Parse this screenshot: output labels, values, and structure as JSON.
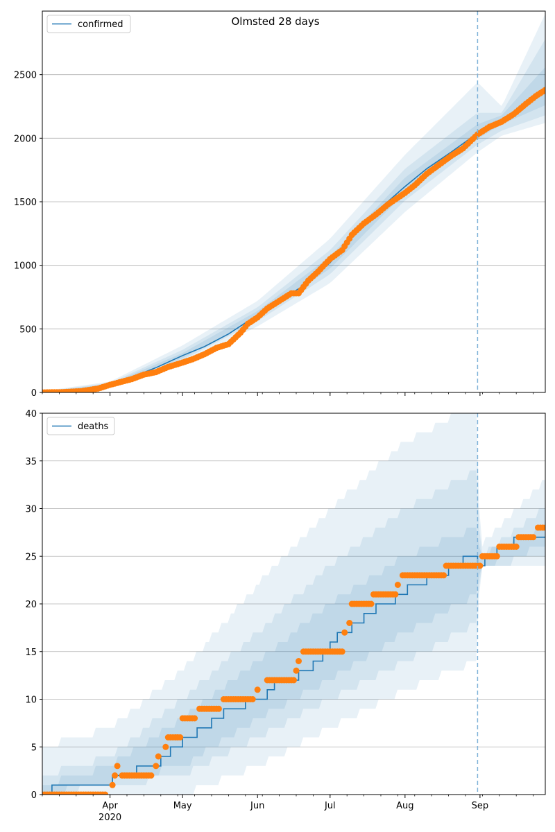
{
  "figure": {
    "title": "Olmsted 28 days"
  },
  "chart_data": [
    {
      "type": "line",
      "legend": {
        "label": "confirmed",
        "position": "top-left"
      },
      "grid": {
        "y": true,
        "x": false
      },
      "x_range": [
        "2020-03-04",
        "2020-09-28"
      ],
      "ylim": [
        0,
        3000
      ],
      "y_ticks": [
        0,
        500,
        1000,
        1500,
        2000,
        2500
      ],
      "x_ticks": [
        {
          "date": "2020-04-01",
          "label": "Apr",
          "sublabel": "2020"
        },
        {
          "date": "2020-05-01",
          "label": "May"
        },
        {
          "date": "2020-06-01",
          "label": "Jun"
        },
        {
          "date": "2020-07-01",
          "label": "Jul"
        },
        {
          "date": "2020-08-01",
          "label": "Aug"
        },
        {
          "date": "2020-09-01",
          "label": "Sep"
        }
      ],
      "forecast_start": "2020-08-31",
      "model_curve": [
        [
          "2020-03-04",
          0
        ],
        [
          "2020-03-15",
          5
        ],
        [
          "2020-03-25",
          25
        ],
        [
          "2020-04-01",
          60
        ],
        [
          "2020-04-10",
          120
        ],
        [
          "2020-04-20",
          195
        ],
        [
          "2020-05-01",
          290
        ],
        [
          "2020-05-10",
          360
        ],
        [
          "2020-05-20",
          460
        ],
        [
          "2020-06-01",
          610
        ],
        [
          "2020-06-10",
          720
        ],
        [
          "2020-06-20",
          840
        ],
        [
          "2020-07-01",
          1020
        ],
        [
          "2020-07-10",
          1230
        ],
        [
          "2020-07-20",
          1420
        ],
        [
          "2020-08-01",
          1620
        ],
        [
          "2020-08-10",
          1760
        ],
        [
          "2020-08-20",
          1890
        ],
        [
          "2020-08-31",
          2040
        ],
        [
          "2020-09-10",
          2150
        ],
        [
          "2020-09-20",
          2270
        ],
        [
          "2020-09-28",
          2390
        ]
      ],
      "bands": [
        {
          "lower": [
            [
              "2020-03-04",
              0
            ],
            [
              "2020-04-01",
              40
            ],
            [
              "2020-05-01",
              230
            ],
            [
              "2020-06-01",
              520
            ],
            [
              "2020-07-01",
              860
            ],
            [
              "2020-08-01",
              1420
            ],
            [
              "2020-08-31",
              1890
            ],
            [
              "2020-09-10",
              2020
            ],
            [
              "2020-09-28",
              2120
            ]
          ],
          "upper": [
            [
              "2020-03-04",
              10
            ],
            [
              "2020-04-01",
              85
            ],
            [
              "2020-05-01",
              370
            ],
            [
              "2020-06-01",
              720
            ],
            [
              "2020-07-01",
              1210
            ],
            [
              "2020-08-01",
              1870
            ],
            [
              "2020-08-31",
              2440
            ],
            [
              "2020-09-10",
              2250
            ],
            [
              "2020-09-28",
              2980
            ]
          ]
        },
        {
          "lower": [
            [
              "2020-03-04",
              0
            ],
            [
              "2020-04-01",
              48
            ],
            [
              "2020-05-01",
              255
            ],
            [
              "2020-06-01",
              560
            ],
            [
              "2020-07-01",
              930
            ],
            [
              "2020-08-01",
              1510
            ],
            [
              "2020-08-31",
              1950
            ],
            [
              "2020-09-10",
              2060
            ],
            [
              "2020-09-28",
              2180
            ]
          ],
          "upper": [
            [
              "2020-03-04",
              6
            ],
            [
              "2020-04-01",
              75
            ],
            [
              "2020-05-01",
              335
            ],
            [
              "2020-06-01",
              670
            ],
            [
              "2020-07-01",
              1120
            ],
            [
              "2020-08-01",
              1760
            ],
            [
              "2020-08-31",
              2200
            ],
            [
              "2020-09-10",
              2200
            ],
            [
              "2020-09-28",
              2780
            ]
          ]
        },
        {
          "lower": [
            [
              "2020-03-04",
              0
            ],
            [
              "2020-04-01",
              53
            ],
            [
              "2020-05-01",
              270
            ],
            [
              "2020-06-01",
              585
            ],
            [
              "2020-07-01",
              975
            ],
            [
              "2020-08-01",
              1570
            ],
            [
              "2020-08-31",
              1995
            ],
            [
              "2020-09-10",
              2110
            ],
            [
              "2020-09-28",
              2260
            ]
          ],
          "upper": [
            [
              "2020-03-04",
              4
            ],
            [
              "2020-04-01",
              68
            ],
            [
              "2020-05-01",
              310
            ],
            [
              "2020-06-01",
              640
            ],
            [
              "2020-07-01",
              1070
            ],
            [
              "2020-08-01",
              1690
            ],
            [
              "2020-08-31",
              2110
            ],
            [
              "2020-09-10",
              2180
            ],
            [
              "2020-09-28",
              2560
            ]
          ]
        }
      ],
      "observed": [
        [
          "2020-03-04",
          0
        ],
        [
          "2020-03-12",
          2
        ],
        [
          "2020-03-20",
          10
        ],
        [
          "2020-03-27",
          30
        ],
        [
          "2020-04-01",
          60
        ],
        [
          "2020-04-05",
          80
        ],
        [
          "2020-04-10",
          105
        ],
        [
          "2020-04-15",
          140
        ],
        [
          "2020-04-20",
          160
        ],
        [
          "2020-04-25",
          200
        ],
        [
          "2020-05-01",
          235
        ],
        [
          "2020-05-05",
          260
        ],
        [
          "2020-05-10",
          300
        ],
        [
          "2020-05-15",
          350
        ],
        [
          "2020-05-20",
          380
        ],
        [
          "2020-05-25",
          470
        ],
        [
          "2020-05-28",
          540
        ],
        [
          "2020-06-01",
          590
        ],
        [
          "2020-06-05",
          660
        ],
        [
          "2020-06-10",
          720
        ],
        [
          "2020-06-15",
          780
        ],
        [
          "2020-06-18",
          780
        ],
        [
          "2020-06-22",
          880
        ],
        [
          "2020-06-26",
          950
        ],
        [
          "2020-07-01",
          1050
        ],
        [
          "2020-07-06",
          1120
        ],
        [
          "2020-07-10",
          1240
        ],
        [
          "2020-07-15",
          1330
        ],
        [
          "2020-07-20",
          1400
        ],
        [
          "2020-07-25",
          1480
        ],
        [
          "2020-08-01",
          1570
        ],
        [
          "2020-08-05",
          1630
        ],
        [
          "2020-08-10",
          1720
        ],
        [
          "2020-08-15",
          1790
        ],
        [
          "2020-08-20",
          1860
        ],
        [
          "2020-08-25",
          1920
        ],
        [
          "2020-08-31",
          2030
        ],
        [
          "2020-09-05",
          2090
        ],
        [
          "2020-09-10",
          2130
        ],
        [
          "2020-09-15",
          2190
        ],
        [
          "2020-09-20",
          2270
        ],
        [
          "2020-09-24",
          2330
        ],
        [
          "2020-09-28",
          2380
        ]
      ]
    },
    {
      "type": "line",
      "legend": {
        "label": "deaths",
        "position": "top-left"
      },
      "grid": {
        "y": true,
        "x": false
      },
      "x_range": [
        "2020-03-04",
        "2020-09-28"
      ],
      "ylim": [
        0,
        40
      ],
      "y_ticks": [
        0,
        5,
        10,
        15,
        20,
        25,
        30,
        35,
        40
      ],
      "x_ticks": [
        {
          "date": "2020-04-01",
          "label": "Apr",
          "sublabel": "2020"
        },
        {
          "date": "2020-05-01",
          "label": "May"
        },
        {
          "date": "2020-06-01",
          "label": "Jun"
        },
        {
          "date": "2020-07-01",
          "label": "Jul"
        },
        {
          "date": "2020-08-01",
          "label": "Aug"
        },
        {
          "date": "2020-09-01",
          "label": "Sep"
        }
      ],
      "forecast_start": "2020-08-31",
      "model_curve": [
        [
          "2020-03-04",
          0
        ],
        [
          "2020-03-08",
          1
        ],
        [
          "2020-04-02",
          2
        ],
        [
          "2020-04-12",
          3
        ],
        [
          "2020-04-22",
          4
        ],
        [
          "2020-04-26",
          5
        ],
        [
          "2020-05-01",
          6
        ],
        [
          "2020-05-07",
          7
        ],
        [
          "2020-05-13",
          8
        ],
        [
          "2020-05-18",
          9
        ],
        [
          "2020-05-27",
          10
        ],
        [
          "2020-06-05",
          11
        ],
        [
          "2020-06-08",
          12
        ],
        [
          "2020-06-18",
          13
        ],
        [
          "2020-06-24",
          14
        ],
        [
          "2020-06-28",
          15
        ],
        [
          "2020-07-01",
          16
        ],
        [
          "2020-07-04",
          17
        ],
        [
          "2020-07-10",
          18
        ],
        [
          "2020-07-15",
          19
        ],
        [
          "2020-07-20",
          20
        ],
        [
          "2020-07-28",
          21
        ],
        [
          "2020-08-02",
          22
        ],
        [
          "2020-08-10",
          23
        ],
        [
          "2020-08-19",
          24
        ],
        [
          "2020-08-25",
          25
        ],
        [
          "2020-08-31",
          24
        ],
        [
          "2020-09-03",
          25
        ],
        [
          "2020-09-08",
          26
        ],
        [
          "2020-09-15",
          27
        ],
        [
          "2020-09-28",
          27
        ]
      ],
      "bands": [
        {
          "lower": [
            [
              "2020-03-04",
              0
            ],
            [
              "2020-05-01",
              0
            ],
            [
              "2020-06-01",
              3
            ],
            [
              "2020-07-01",
              7
            ],
            [
              "2020-08-01",
              11
            ],
            [
              "2020-08-31",
              14
            ],
            [
              "2020-09-01",
              24
            ],
            [
              "2020-09-28",
              24
            ]
          ],
          "upper": [
            [
              "2020-03-04",
              5
            ],
            [
              "2020-04-01",
              7
            ],
            [
              "2020-05-01",
              13
            ],
            [
              "2020-06-01",
              22
            ],
            [
              "2020-07-01",
              30
            ],
            [
              "2020-08-01",
              37
            ],
            [
              "2020-08-31",
              41
            ],
            [
              "2020-09-01",
              26
            ],
            [
              "2020-09-28",
              33
            ]
          ]
        },
        {
          "lower": [
            [
              "2020-03-04",
              0
            ],
            [
              "2020-05-01",
              2
            ],
            [
              "2020-06-01",
              6
            ],
            [
              "2020-07-01",
              10
            ],
            [
              "2020-08-01",
              14
            ],
            [
              "2020-08-31",
              18
            ],
            [
              "2020-09-01",
              24
            ],
            [
              "2020-09-28",
              25
            ]
          ],
          "upper": [
            [
              "2020-03-04",
              2
            ],
            [
              "2020-04-01",
              4
            ],
            [
              "2020-05-01",
              10
            ],
            [
              "2020-06-01",
              17
            ],
            [
              "2020-07-01",
              24
            ],
            [
              "2020-08-01",
              30
            ],
            [
              "2020-08-31",
              34
            ],
            [
              "2020-09-01",
              25
            ],
            [
              "2020-09-28",
              30
            ]
          ]
        },
        {
          "lower": [
            [
              "2020-03-04",
              0
            ],
            [
              "2020-05-01",
              3
            ],
            [
              "2020-06-01",
              8
            ],
            [
              "2020-07-01",
              12
            ],
            [
              "2020-08-01",
              17
            ],
            [
              "2020-08-31",
              21
            ],
            [
              "2020-09-01",
              24
            ],
            [
              "2020-09-28",
              26
            ]
          ],
          "upper": [
            [
              "2020-03-04",
              1
            ],
            [
              "2020-04-01",
              3
            ],
            [
              "2020-05-01",
              8
            ],
            [
              "2020-06-01",
              14
            ],
            [
              "2020-07-01",
              20
            ],
            [
              "2020-08-01",
              25
            ],
            [
              "2020-08-31",
              28
            ],
            [
              "2020-09-01",
              25
            ],
            [
              "2020-09-28",
              28
            ]
          ]
        }
      ],
      "observed": [
        [
          "2020-03-04",
          0
        ],
        [
          "2020-03-10",
          0
        ],
        [
          "2020-03-15",
          0
        ],
        [
          "2020-03-20",
          0
        ],
        [
          "2020-03-25",
          0
        ],
        [
          "2020-03-30",
          0
        ],
        [
          "2020-04-02",
          1
        ],
        [
          "2020-04-03",
          2
        ],
        [
          "2020-04-04",
          3
        ],
        [
          "2020-04-06",
          2
        ],
        [
          "2020-04-12",
          2
        ],
        [
          "2020-04-18",
          2
        ],
        [
          "2020-04-20",
          3
        ],
        [
          "2020-04-21",
          4
        ],
        [
          "2020-04-24",
          5
        ],
        [
          "2020-04-25",
          6
        ],
        [
          "2020-04-30",
          6
        ],
        [
          "2020-05-01",
          8
        ],
        [
          "2020-05-06",
          8
        ],
        [
          "2020-05-08",
          9
        ],
        [
          "2020-05-16",
          9
        ],
        [
          "2020-05-18",
          10
        ],
        [
          "2020-05-30",
          10
        ],
        [
          "2020-06-01",
          11
        ],
        [
          "2020-06-05",
          12
        ],
        [
          "2020-06-16",
          12
        ],
        [
          "2020-06-17",
          13
        ],
        [
          "2020-06-18",
          14
        ],
        [
          "2020-06-20",
          15
        ],
        [
          "2020-07-06",
          15
        ],
        [
          "2020-07-07",
          17
        ],
        [
          "2020-07-09",
          18
        ],
        [
          "2020-07-10",
          20
        ],
        [
          "2020-07-18",
          20
        ],
        [
          "2020-07-19",
          21
        ],
        [
          "2020-07-28",
          21
        ],
        [
          "2020-07-29",
          22
        ],
        [
          "2020-07-31",
          23
        ],
        [
          "2020-08-17",
          23
        ],
        [
          "2020-08-18",
          24
        ],
        [
          "2020-09-01",
          24
        ],
        [
          "2020-09-02",
          25
        ],
        [
          "2020-09-08",
          25
        ],
        [
          "2020-09-09",
          26
        ],
        [
          "2020-09-16",
          26
        ],
        [
          "2020-09-17",
          27
        ],
        [
          "2020-09-23",
          27
        ],
        [
          "2020-09-25",
          28
        ],
        [
          "2020-09-28",
          28
        ]
      ]
    }
  ],
  "colors": {
    "line": "#1f77b4",
    "band": "#1f77b4",
    "marker": "#ff7f0e",
    "grid": "#b0b0b0",
    "forecast": "#7fb2d9"
  }
}
